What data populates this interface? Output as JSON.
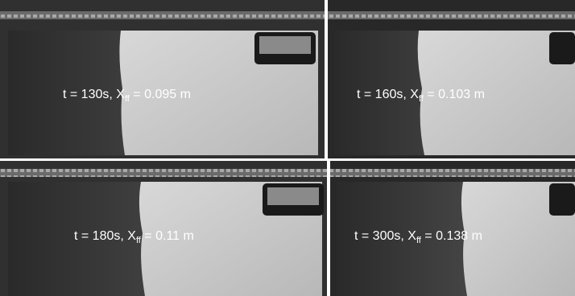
{
  "panels": [
    {
      "label": {
        "prefix": "t = 130s, X",
        "subscript": "ff",
        "suffix": " = 0.095 m"
      }
    },
    {
      "label": {
        "prefix": "t = 160s, X",
        "subscript": "ff",
        "suffix": " = 0.103 m"
      }
    },
    {
      "label": {
        "prefix": "t = 180s, X",
        "subscript": "ff",
        "suffix": " = 0.11 m"
      }
    },
    {
      "label": {
        "prefix": "t = 300s, X",
        "subscript": "ff",
        "suffix": " = 0.138 m"
      }
    }
  ]
}
